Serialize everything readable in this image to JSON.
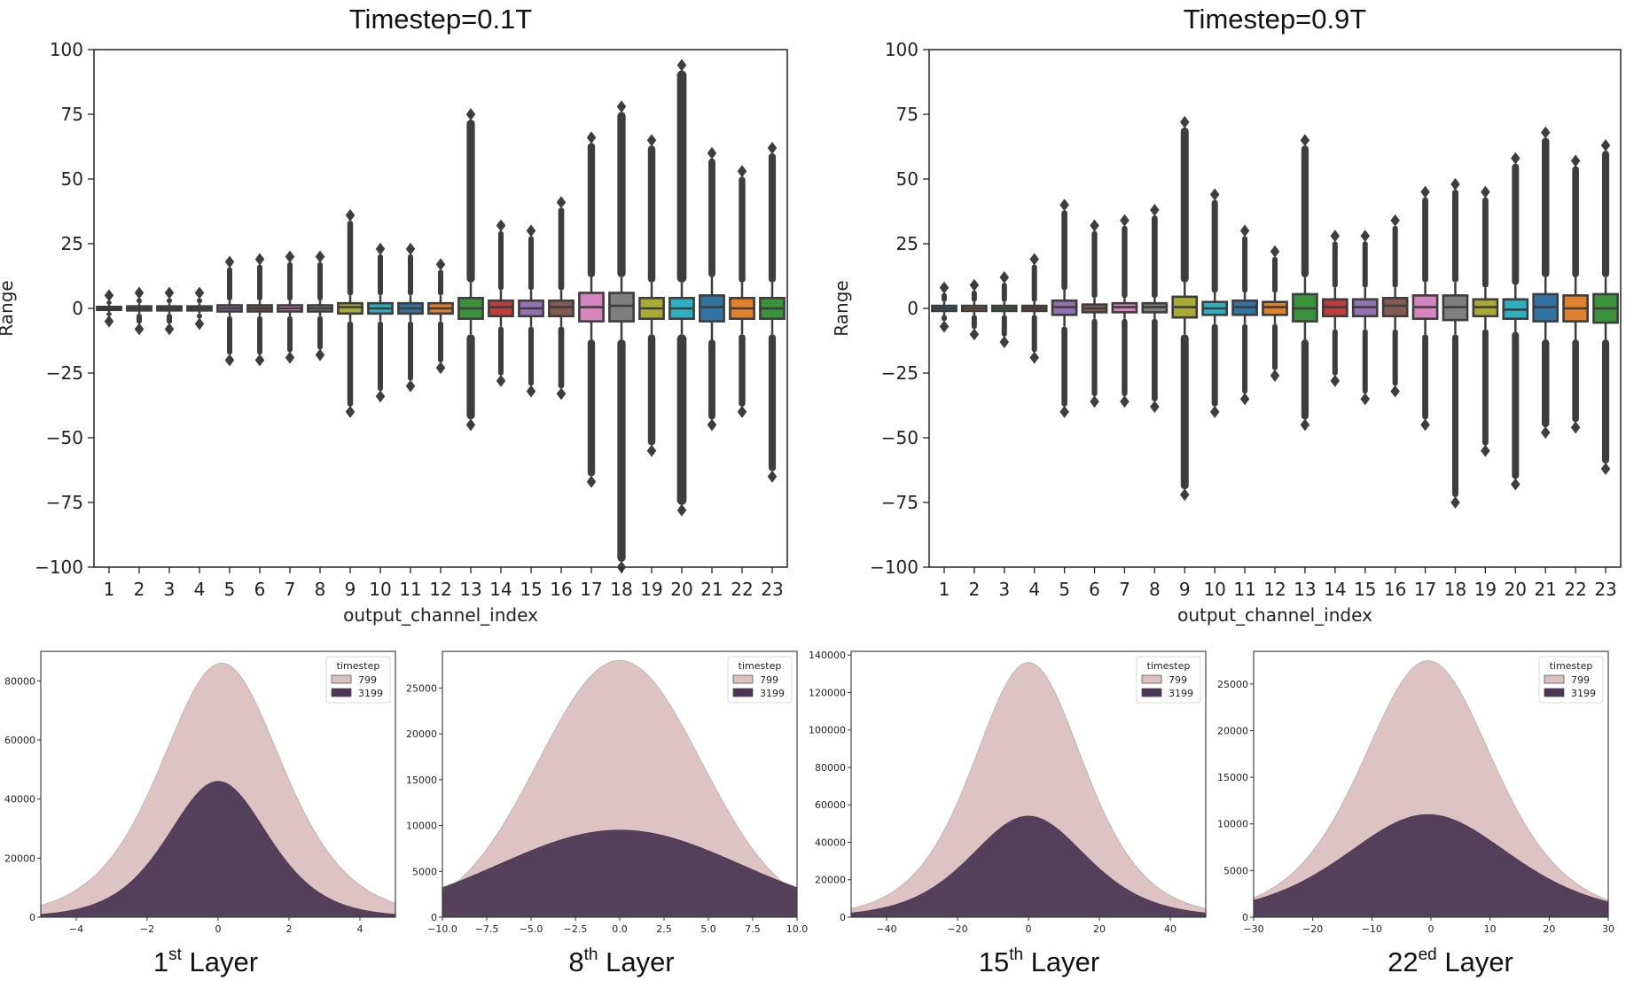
{
  "chart_data": [
    {
      "type": "box",
      "title": "Timestep=0.1T",
      "xlabel": "output_channel_index",
      "ylabel": "Range",
      "ylim": [
        -100,
        100
      ],
      "yticks": [
        "100",
        "75",
        "50",
        "25",
        "0",
        "−25",
        "−50",
        "−75",
        "−100"
      ],
      "categories": [
        "1",
        "2",
        "3",
        "4",
        "5",
        "6",
        "7",
        "8",
        "9",
        "10",
        "11",
        "12",
        "13",
        "14",
        "15",
        "16",
        "17",
        "18",
        "19",
        "20",
        "21",
        "22",
        "23"
      ],
      "colors": [
        "#3274a1",
        "#e1812c",
        "#3a923a",
        "#c03d3e",
        "#9372b2",
        "#845b53",
        "#d684bd",
        "#7f7f7f",
        "#a9aa35",
        "#2eb0c1",
        "#3274a1",
        "#e1812c",
        "#3a923a",
        "#c03d3e",
        "#9372b2",
        "#845b53",
        "#d684bd",
        "#7f7f7f",
        "#a9aa35",
        "#2eb0c1",
        "#3274a1",
        "#e1812c",
        "#3a923a"
      ],
      "boxes": [
        {
          "q1": -0.6,
          "median": 0,
          "q3": 0.6,
          "whislo": -1.5,
          "whishi": 1.5,
          "fliermin": -5,
          "fliermax": 5
        },
        {
          "q1": -0.8,
          "median": 0,
          "q3": 0.8,
          "whislo": -2,
          "whishi": 2,
          "fliermin": -8,
          "fliermax": 6
        },
        {
          "q1": -0.8,
          "median": 0,
          "q3": 0.8,
          "whislo": -2,
          "whishi": 2,
          "fliermin": -8,
          "fliermax": 6
        },
        {
          "q1": -0.8,
          "median": 0,
          "q3": 0.8,
          "whislo": -2,
          "whishi": 2,
          "fliermin": -6,
          "fliermax": 6
        },
        {
          "q1": -1.2,
          "median": 0,
          "q3": 1.2,
          "whislo": -3,
          "whishi": 3,
          "fliermin": -20,
          "fliermax": 18
        },
        {
          "q1": -1.2,
          "median": 0,
          "q3": 1.2,
          "whislo": -3,
          "whishi": 3,
          "fliermin": -20,
          "fliermax": 19
        },
        {
          "q1": -1.2,
          "median": 0,
          "q3": 1.2,
          "whislo": -3,
          "whishi": 3,
          "fliermin": -19,
          "fliermax": 20
        },
        {
          "q1": -1.2,
          "median": 0,
          "q3": 1.2,
          "whislo": -3,
          "whishi": 3,
          "fliermin": -18,
          "fliermax": 20
        },
        {
          "q1": -2,
          "median": 0.5,
          "q3": 2,
          "whislo": -5,
          "whishi": 5,
          "fliermin": -40,
          "fliermax": 36
        },
        {
          "q1": -2,
          "median": 0,
          "q3": 2,
          "whislo": -5,
          "whishi": 5,
          "fliermin": -34,
          "fliermax": 23
        },
        {
          "q1": -2,
          "median": 0,
          "q3": 2,
          "whislo": -5,
          "whishi": 5,
          "fliermin": -30,
          "fliermax": 23
        },
        {
          "q1": -2,
          "median": 0,
          "q3": 2,
          "whislo": -5,
          "whishi": 5,
          "fliermin": -23,
          "fliermax": 17
        },
        {
          "q1": -4,
          "median": 0,
          "q3": 4,
          "whislo": -10,
          "whishi": 10,
          "fliermin": -45,
          "fliermax": 75
        },
        {
          "q1": -3,
          "median": 0.5,
          "q3": 3,
          "whislo": -7,
          "whishi": 7,
          "fliermin": -28,
          "fliermax": 32
        },
        {
          "q1": -3,
          "median": 0,
          "q3": 3,
          "whislo": -7,
          "whishi": 7,
          "fliermin": -32,
          "fliermax": 30
        },
        {
          "q1": -3,
          "median": 0.5,
          "q3": 3,
          "whislo": -7,
          "whishi": 7,
          "fliermin": -33,
          "fliermax": 41
        },
        {
          "q1": -5,
          "median": 0.5,
          "q3": 6,
          "whislo": -12,
          "whishi": 12,
          "fliermin": -67,
          "fliermax": 66
        },
        {
          "q1": -5,
          "median": 1,
          "q3": 6,
          "whislo": -12,
          "whishi": 12,
          "fliermin": -100,
          "fliermax": 78
        },
        {
          "q1": -4,
          "median": 0,
          "q3": 4,
          "whislo": -10,
          "whishi": 10,
          "fliermin": -55,
          "fliermax": 65
        },
        {
          "q1": -4,
          "median": 0,
          "q3": 4,
          "whislo": -10,
          "whishi": 10,
          "fliermin": -78,
          "fliermax": 94
        },
        {
          "q1": -5,
          "median": 0.5,
          "q3": 5,
          "whislo": -12,
          "whishi": 12,
          "fliermin": -45,
          "fliermax": 60
        },
        {
          "q1": -4,
          "median": 0,
          "q3": 4,
          "whislo": -10,
          "whishi": 10,
          "fliermin": -40,
          "fliermax": 53
        },
        {
          "q1": -4,
          "median": 0,
          "q3": 4,
          "whislo": -10,
          "whishi": 10,
          "fliermin": -65,
          "fliermax": 62
        }
      ]
    },
    {
      "type": "box",
      "title": "Timestep=0.9T",
      "xlabel": "output_channel_index",
      "ylabel": "Range",
      "ylim": [
        -100,
        100
      ],
      "yticks": [
        "100",
        "75",
        "50",
        "25",
        "0",
        "−25",
        "−50",
        "−75",
        "−100"
      ],
      "categories": [
        "1",
        "2",
        "3",
        "4",
        "5",
        "6",
        "7",
        "8",
        "9",
        "10",
        "11",
        "12",
        "13",
        "14",
        "15",
        "16",
        "17",
        "18",
        "19",
        "20",
        "21",
        "22",
        "23"
      ],
      "colors": [
        "#3274a1",
        "#e1812c",
        "#3a923a",
        "#c03d3e",
        "#9372b2",
        "#845b53",
        "#d684bd",
        "#7f7f7f",
        "#a9aa35",
        "#2eb0c1",
        "#3274a1",
        "#e1812c",
        "#3a923a",
        "#c03d3e",
        "#9372b2",
        "#845b53",
        "#d684bd",
        "#7f7f7f",
        "#a9aa35",
        "#2eb0c1",
        "#3274a1",
        "#e1812c",
        "#3a923a"
      ],
      "boxes": [
        {
          "q1": -1,
          "median": 0,
          "q3": 1,
          "whislo": -2.5,
          "whishi": 2.5,
          "fliermin": -7,
          "fliermax": 8
        },
        {
          "q1": -1,
          "median": 0,
          "q3": 1,
          "whislo": -2.5,
          "whishi": 2.5,
          "fliermin": -10,
          "fliermax": 9
        },
        {
          "q1": -1,
          "median": 0,
          "q3": 1,
          "whislo": -2.5,
          "whishi": 2.5,
          "fliermin": -13,
          "fliermax": 12
        },
        {
          "q1": -1,
          "median": 0,
          "q3": 1,
          "whislo": -2.5,
          "whishi": 2.5,
          "fliermin": -19,
          "fliermax": 19
        },
        {
          "q1": -2.5,
          "median": 0.5,
          "q3": 3,
          "whislo": -7,
          "whishi": 7,
          "fliermin": -40,
          "fliermax": 40
        },
        {
          "q1": -1.5,
          "median": 0,
          "q3": 1.5,
          "whislo": -4,
          "whishi": 4,
          "fliermin": -36,
          "fliermax": 32
        },
        {
          "q1": -1.5,
          "median": 0.5,
          "q3": 2,
          "whislo": -4,
          "whishi": 4,
          "fliermin": -36,
          "fliermax": 34
        },
        {
          "q1": -1.5,
          "median": 0.5,
          "q3": 2,
          "whislo": -4,
          "whishi": 4,
          "fliermin": -38,
          "fliermax": 38
        },
        {
          "q1": -3.5,
          "median": 0.5,
          "q3": 4.5,
          "whislo": -10,
          "whishi": 10,
          "fliermin": -72,
          "fliermax": 72
        },
        {
          "q1": -2.5,
          "median": 0,
          "q3": 2.5,
          "whislo": -6,
          "whishi": 6,
          "fliermin": -40,
          "fliermax": 44
        },
        {
          "q1": -2.5,
          "median": 0.5,
          "q3": 3,
          "whislo": -6,
          "whishi": 6,
          "fliermin": -35,
          "fliermax": 30
        },
        {
          "q1": -2.5,
          "median": 0.5,
          "q3": 2.5,
          "whislo": -6,
          "whishi": 6,
          "fliermin": -26,
          "fliermax": 22
        },
        {
          "q1": -5,
          "median": 0,
          "q3": 5.5,
          "whislo": -12,
          "whishi": 12,
          "fliermin": -45,
          "fliermax": 65
        },
        {
          "q1": -3,
          "median": 0.5,
          "q3": 3.5,
          "whislo": -8,
          "whishi": 8,
          "fliermin": -28,
          "fliermax": 28
        },
        {
          "q1": -3,
          "median": 0.5,
          "q3": 3.5,
          "whislo": -8,
          "whishi": 8,
          "fliermin": -35,
          "fliermax": 28
        },
        {
          "q1": -3,
          "median": 1,
          "q3": 4,
          "whislo": -8,
          "whishi": 8,
          "fliermin": -32,
          "fliermax": 34
        },
        {
          "q1": -4,
          "median": 0.5,
          "q3": 5,
          "whislo": -10,
          "whishi": 10,
          "fliermin": -45,
          "fliermax": 45
        },
        {
          "q1": -4.5,
          "median": 0.5,
          "q3": 5,
          "whislo": -10,
          "whishi": 10,
          "fliermin": -75,
          "fliermax": 48
        },
        {
          "q1": -3,
          "median": 0.5,
          "q3": 3.5,
          "whislo": -8,
          "whishi": 8,
          "fliermin": -55,
          "fliermax": 45
        },
        {
          "q1": -4,
          "median": -0.5,
          "q3": 3.5,
          "whislo": -9,
          "whishi": 9,
          "fliermin": -68,
          "fliermax": 58
        },
        {
          "q1": -5,
          "median": 0.5,
          "q3": 5.5,
          "whislo": -12,
          "whishi": 12,
          "fliermin": -48,
          "fliermax": 68
        },
        {
          "q1": -5,
          "median": 0,
          "q3": 5,
          "whislo": -12,
          "whishi": 12,
          "fliermin": -46,
          "fliermax": 57
        },
        {
          "q1": -5.5,
          "median": 0,
          "q3": 5.5,
          "whislo": -12,
          "whishi": 12,
          "fliermin": -62,
          "fliermax": 63
        }
      ]
    },
    {
      "type": "histogram",
      "title": "1st Layer",
      "label_main": "1",
      "label_sup": "st",
      "label_rest": " Layer",
      "legend_title": "timestep",
      "xlim": [
        -5,
        5
      ],
      "ylim": [
        0,
        90000
      ],
      "xticks": [
        "−4",
        "−2",
        "0",
        "2",
        "4"
      ],
      "xtick_values": [
        -4,
        -2,
        0,
        2,
        4
      ],
      "yticks": [
        "0",
        "20000",
        "40000",
        "60000",
        "80000"
      ],
      "ytick_values": [
        0,
        20000,
        40000,
        60000,
        80000
      ],
      "series": [
        {
          "name": "799",
          "color": "#dcc1c0",
          "peak": 86000,
          "center": 0.1,
          "scale": 1.15,
          "shape": "logistic"
        },
        {
          "name": "3199",
          "color": "#4b3754",
          "peak": 46000,
          "center": 0.0,
          "scale": 0.95,
          "shape": "logistic"
        }
      ]
    },
    {
      "type": "histogram",
      "title": "8th Layer",
      "label_main": "8",
      "label_sup": "th",
      "label_rest": " Layer",
      "legend_title": "timestep",
      "xlim": [
        -10,
        10
      ],
      "ylim": [
        0,
        29000
      ],
      "xticks": [
        "−10.0",
        "−7.5",
        "−5.0",
        "−2.5",
        "0.0",
        "2.5",
        "5.0",
        "7.5",
        "10.0"
      ],
      "xtick_values": [
        -10,
        -7.5,
        -5,
        -2.5,
        0,
        2.5,
        5,
        7.5,
        10
      ],
      "yticks": [
        "0",
        "5000",
        "10000",
        "15000",
        "20000",
        "25000"
      ],
      "ytick_values": [
        0,
        5000,
        10000,
        15000,
        20000,
        25000
      ],
      "series": [
        {
          "name": "799",
          "color": "#dcc1c0",
          "peak": 28000,
          "center": 0.0,
          "scale": 4.6,
          "shape": "gauss"
        },
        {
          "name": "3199",
          "color": "#4b3754",
          "peak": 9500,
          "center": 0.0,
          "scale": 6.8,
          "shape": "gauss"
        }
      ]
    },
    {
      "type": "histogram",
      "title": "15th Layer",
      "label_main": "15",
      "label_sup": "th",
      "label_rest": " Layer",
      "legend_title": "timestep",
      "xlim": [
        -50,
        50
      ],
      "ylim": [
        0,
        142000
      ],
      "xticks": [
        "−40",
        "−20",
        "0",
        "20",
        "40"
      ],
      "xtick_values": [
        -40,
        -20,
        0,
        20,
        40
      ],
      "yticks": [
        "0",
        "20000",
        "40000",
        "60000",
        "80000",
        "100000",
        "120000",
        "140000"
      ],
      "ytick_values": [
        0,
        20000,
        40000,
        60000,
        80000,
        100000,
        120000,
        140000
      ],
      "series": [
        {
          "name": "799",
          "color": "#dcc1c0",
          "peak": 136000,
          "center": 0.0,
          "scale": 10.5,
          "shape": "logistic"
        },
        {
          "name": "3199",
          "color": "#4b3754",
          "peak": 54000,
          "center": 0.0,
          "scale": 11.0,
          "shape": "logistic"
        }
      ]
    },
    {
      "type": "histogram",
      "title": "22ed Layer",
      "label_main": "22",
      "label_sup": "ed",
      "label_rest": " Layer",
      "legend_title": "timestep",
      "xlim": [
        -30,
        30
      ],
      "ylim": [
        0,
        28500
      ],
      "xticks": [
        "−30",
        "−20",
        "−10",
        "0",
        "10",
        "20",
        "30"
      ],
      "xtick_values": [
        -30,
        -20,
        -10,
        0,
        10,
        20,
        30
      ],
      "yticks": [
        "0",
        "5000",
        "10000",
        "15000",
        "20000",
        "25000"
      ],
      "ytick_values": [
        0,
        5000,
        10000,
        15000,
        20000,
        25000
      ],
      "series": [
        {
          "name": "799",
          "color": "#dcc1c0",
          "peak": 27500,
          "center": -0.5,
          "scale": 7.5,
          "shape": "logistic"
        },
        {
          "name": "3199",
          "color": "#4b3754",
          "peak": 11000,
          "center": -0.5,
          "scale": 9.5,
          "shape": "logistic"
        }
      ]
    }
  ]
}
